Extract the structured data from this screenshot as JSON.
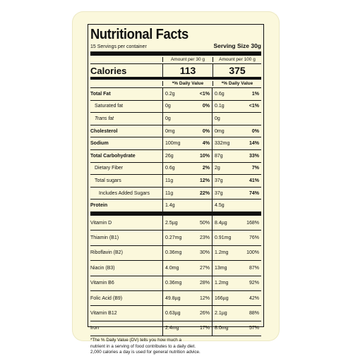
{
  "title": "Nutritional Facts",
  "servings_per_container": "15 Servings per container",
  "serving_size": "Serving Size 30g",
  "column_headers": {
    "per_serving": "Amount per 30 g",
    "per_100g": "Amount per 100 g"
  },
  "calories": {
    "label": "Calories",
    "per_serving": "113",
    "per_100g": "375"
  },
  "daily_value_header": {
    "per_serving": "*% Daily Value",
    "per_100g": "*% Daily Value"
  },
  "nutrients": [
    {
      "label": "Total Fat",
      "style": "b",
      "amt1": "0.2g",
      "pct1": "<1%",
      "amt2": "0.6g",
      "pct2": "1%",
      "pct_bold": true
    },
    {
      "label": "Saturated fat",
      "style": "ind1",
      "amt1": "0g",
      "pct1": "0%",
      "amt2": "0.1g",
      "pct2": "<1%",
      "pct_bold": true
    },
    {
      "label": "Trans fat",
      "style": "ind1 i",
      "amt1": "0g",
      "pct1": "",
      "amt2": "0g",
      "pct2": "",
      "pct_bold": true
    },
    {
      "label": "Cholesterol",
      "style": "b",
      "amt1": "0mg",
      "pct1": "0%",
      "amt2": "0mg",
      "pct2": "0%",
      "pct_bold": true
    },
    {
      "label": "Sodium",
      "style": "b",
      "amt1": "100mg",
      "pct1": "4%",
      "amt2": "332mg",
      "pct2": "14%",
      "pct_bold": true
    },
    {
      "label": "Total Carbohydrate",
      "style": "b",
      "amt1": "26g",
      "pct1": "10%",
      "amt2": "87g",
      "pct2": "33%",
      "pct_bold": true
    },
    {
      "label": "Dietary Fiber",
      "style": "ind1",
      "amt1": "0.6g",
      "pct1": "2%",
      "amt2": "2g",
      "pct2": "7%",
      "pct_bold": true
    },
    {
      "label": "Total sugars",
      "style": "ind1",
      "amt1": "11g",
      "pct1": "12%",
      "amt2": "37g",
      "pct2": "41%",
      "pct_bold": true
    },
    {
      "label": "Includes Added Sugars",
      "style": "ind2",
      "amt1": "11g",
      "pct1": "22%",
      "amt2": "37g",
      "pct2": "74%",
      "pct_bold": true
    },
    {
      "label": "Protein",
      "style": "b",
      "amt1": "1.4g",
      "pct1": "",
      "amt2": "4.5g",
      "pct2": "",
      "pct_bold": true,
      "thick": true
    }
  ],
  "vitamins": [
    {
      "label": "Vitamin D",
      "amt1": "2.5µg",
      "pct1": "50%",
      "amt2": "8.4µg",
      "pct2": "168%"
    },
    {
      "label": "Thiamin (B1)",
      "amt1": "0.27mg",
      "pct1": "23%",
      "amt2": "0.91mg",
      "pct2": "76%"
    },
    {
      "label": "Riboflavin (B2)",
      "amt1": "0.36mg",
      "pct1": "30%",
      "amt2": "1.2mg",
      "pct2": "100%"
    },
    {
      "label": "Niacin (B3)",
      "amt1": "4.0mg",
      "pct1": "27%",
      "amt2": "13mg",
      "pct2": "87%"
    },
    {
      "label": "Vitamin B6",
      "amt1": "0.36mg",
      "pct1": "28%",
      "amt2": "1.2mg",
      "pct2": "92%"
    },
    {
      "label": "Folic Acid (B9)",
      "amt1": "49.8µg",
      "pct1": "12%",
      "amt2": "166µg",
      "pct2": "42%"
    },
    {
      "label": "Vitamin B12",
      "amt1": "0.63µg",
      "pct1": "26%",
      "amt2": "2.1µg",
      "pct2": "88%"
    },
    {
      "label": "Iron",
      "amt1": "2.4mg",
      "pct1": "17%",
      "amt2": "8.0mg",
      "pct2": "57%"
    }
  ],
  "footnote": [
    "*The % Daily Value (DV) tells you how much a",
    "nutrient in a serving of food contributes to a daily diet.",
    "2,000 calories a day is used for general nutrition advice."
  ],
  "colors": {
    "card_background": "#fbf8dc",
    "text": "#111111"
  }
}
